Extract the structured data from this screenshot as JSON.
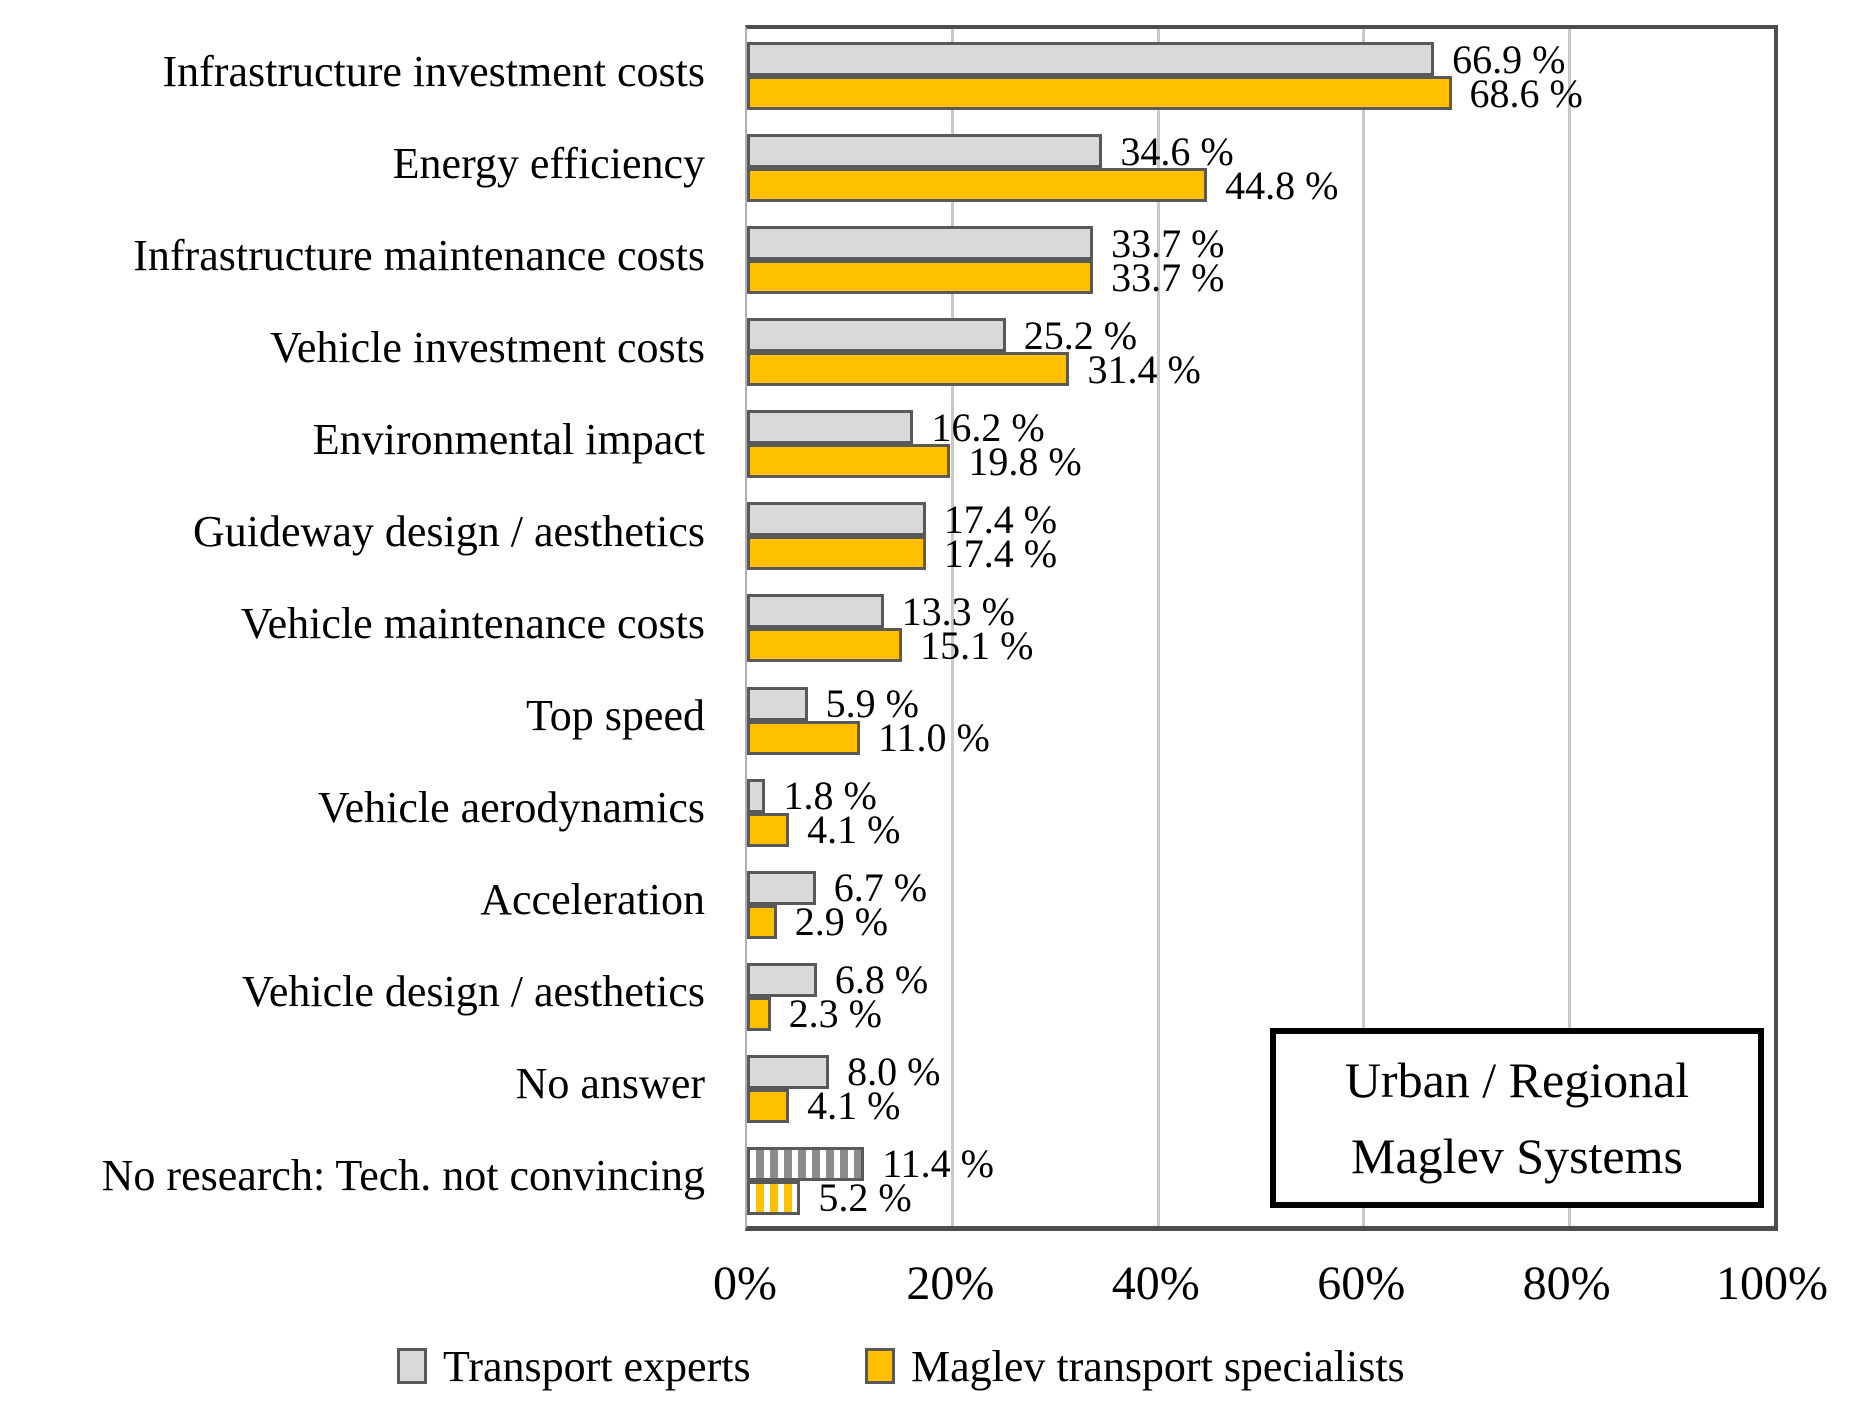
{
  "chart_data": {
    "type": "bar",
    "orientation": "horizontal",
    "title": "",
    "categories": [
      "Infrastructure investment costs",
      "Energy efficiency",
      "Infrastructure maintenance costs",
      "Vehicle investment costs",
      "Environmental impact",
      "Guideway design / aesthetics",
      "Vehicle maintenance costs",
      "Top speed",
      "Vehicle aerodynamics",
      "Acceleration",
      "Vehicle design / aesthetics",
      "No answer",
      "No research: Tech. not convincing"
    ],
    "series": [
      {
        "name": "Transport experts",
        "color": "#D9D9D9",
        "values": [
          66.9,
          34.6,
          33.7,
          25.2,
          16.2,
          17.4,
          13.3,
          5.9,
          1.8,
          6.7,
          6.8,
          8.0,
          11.4
        ]
      },
      {
        "name": "Maglev transport specialists",
        "color": "#FFC000",
        "values": [
          68.6,
          44.8,
          33.7,
          31.4,
          19.8,
          17.4,
          15.1,
          11.0,
          4.1,
          2.9,
          2.3,
          4.1,
          5.2
        ]
      }
    ],
    "value_suffix": " %",
    "hatched_category_index": 12,
    "x_ticks": [
      "0%",
      "20%",
      "40%",
      "60%",
      "80%",
      "100%"
    ],
    "xlim": [
      0,
      100
    ],
    "grid": "vertical",
    "legend_position": "bottom",
    "annotation_lines": [
      "Urban / Regional",
      "Maglev Systems"
    ]
  },
  "colors": {
    "experts_fill": "#D9D9D9",
    "specialists_fill": "#FFC000",
    "bar_border": "#595959",
    "gridline": "#C9C9C9",
    "axis_border": "#4D4D4D",
    "annotation_border": "#000000",
    "text": "#000000"
  }
}
